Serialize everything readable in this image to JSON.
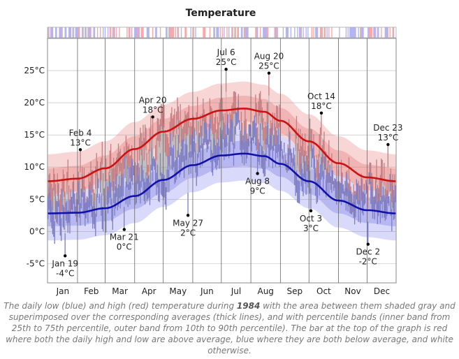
{
  "chart_data": {
    "type": "line",
    "title": "Temperature",
    "xlabel": "",
    "ylabel": "",
    "year": "1984",
    "ylim": [
      -8,
      30
    ],
    "yticks": [
      -5,
      0,
      5,
      10,
      15,
      20,
      25
    ],
    "ytick_labels": [
      "-5°C",
      "0°C",
      "5°C",
      "10°C",
      "15°C",
      "20°C",
      "25°C"
    ],
    "months": [
      "Jan",
      "Feb",
      "Mar",
      "Apr",
      "May",
      "Jun",
      "Jul",
      "Aug",
      "Sep",
      "Oct",
      "Nov",
      "Dec"
    ],
    "grid": true,
    "colors": {
      "high": "#cc1111",
      "low": "#1111aa",
      "high_dim": "#c97c80",
      "low_dim": "#7c7cc9",
      "band_high_outer": "#f9d6d6",
      "band_high_inner": "#f2b3b3",
      "band_low_outer": "#d9d9fb",
      "band_low_inner": "#b7b7f2",
      "overlap": "#bbbbbb"
    },
    "series": [
      {
        "name": "average high",
        "x": [
          "Jan 1",
          "Feb 1",
          "Mar 1",
          "Apr 1",
          "May 1",
          "Jun 1",
          "Jul 1",
          "Jul 25",
          "Aug 15",
          "Sep 1",
          "Oct 1",
          "Nov 1",
          "Dec 1",
          "Dec 31"
        ],
        "values": [
          7.8,
          8.2,
          9.8,
          12.8,
          15.5,
          17.5,
          18.8,
          19.1,
          18.6,
          17.2,
          14.0,
          10.6,
          8.4,
          7.8
        ]
      },
      {
        "name": "average low",
        "x": [
          "Jan 1",
          "Feb 1",
          "Mar 1",
          "Apr 1",
          "May 1",
          "Jun 1",
          "Jul 1",
          "Jul 25",
          "Aug 15",
          "Sep 1",
          "Oct 1",
          "Nov 1",
          "Dec 1",
          "Dec 31"
        ],
        "values": [
          2.8,
          2.9,
          3.6,
          5.5,
          8.0,
          10.3,
          11.8,
          12.1,
          11.7,
          10.5,
          7.8,
          4.8,
          3.3,
          2.8
        ]
      }
    ],
    "annotations": [
      {
        "date": "Jan 19",
        "value": "-4°C",
        "y": -3.8,
        "kind": "low"
      },
      {
        "date": "Feb 4",
        "value": "13°C",
        "y": 12.7,
        "kind": "high"
      },
      {
        "date": "Mar 21",
        "value": "0°C",
        "y": 0.3,
        "kind": "low"
      },
      {
        "date": "Apr 20",
        "value": "18°C",
        "y": 17.8,
        "kind": "high"
      },
      {
        "date": "May 27",
        "value": "2°C",
        "y": 2.5,
        "kind": "low"
      },
      {
        "date": "Jul 6",
        "value": "25°C",
        "y": 25.2,
        "kind": "high"
      },
      {
        "date": "Aug 20",
        "value": "25°C",
        "y": 24.6,
        "kind": "high"
      },
      {
        "date": "Aug 8",
        "value": "9°C",
        "y": 9.0,
        "kind": "low"
      },
      {
        "date": "Oct 3",
        "value": "3°C",
        "y": 3.2,
        "kind": "low"
      },
      {
        "date": "Oct 14",
        "value": "18°C",
        "y": 18.4,
        "kind": "high"
      },
      {
        "date": "Dec 2",
        "value": "-2°C",
        "y": -2.0,
        "kind": "low"
      },
      {
        "date": "Dec 23",
        "value": "13°C",
        "y": 13.5,
        "kind": "high"
      }
    ]
  },
  "caption": {
    "part1": "The daily low (blue) and high (red) temperature during ",
    "year": "1984",
    "part2": " with the area between them shaded gray and superimposed over the corresponding averages (thick lines), and with percentile bands (inner band from 25th to 75th percentile, outer band from 10th to 90th percentile). The bar at the top of the graph is red where both the daily high and low are above average, blue where they are both below average, and white otherwise."
  }
}
